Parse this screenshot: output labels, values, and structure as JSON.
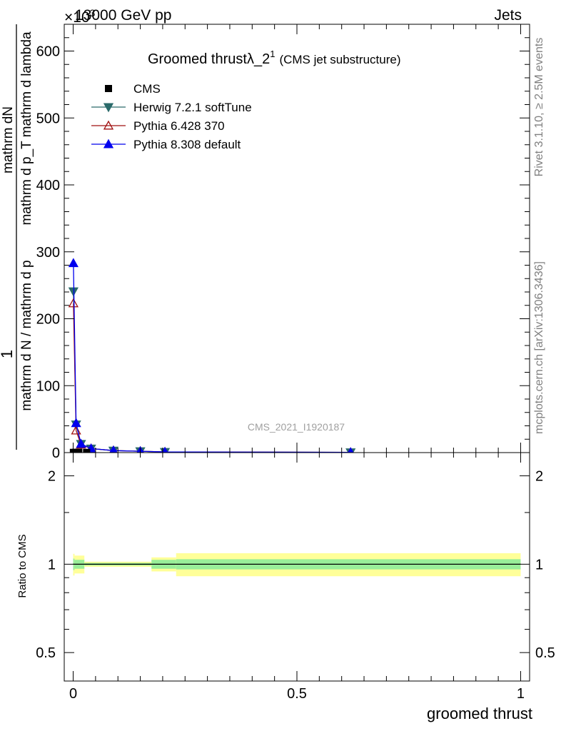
{
  "header": {
    "left": "13000 GeV pp",
    "right": "Jets",
    "exponent_prefix": "×10",
    "exponent_power": "3"
  },
  "side_labels": {
    "rivet": "Rivet 3.1.10, ≥ 2.5M events",
    "mcplots": "mcplots.cern.ch [arXiv:1306.3436]"
  },
  "chart_data": [
    {
      "type": "line",
      "title": "Groomed thrustλ_2",
      "title_sup": "1",
      "subtitle": "(CMS jet substructure)",
      "watermark": "CMS_2021_I1920187",
      "ylabel_numerator": "1",
      "ylabel_line1": "mathrm d N / mathrm d p",
      "ylabel_line2": "mathrm dN",
      "ylabel_line3": "mathrm d p_T mathrm d lambda",
      "ylabel_full": "mathrm d N / mathrm d p_T mathrm d p_T mathrm d lambda",
      "xlabel": "groomed thrust",
      "ylim": [
        0,
        640
      ],
      "xlim": [
        -0.02,
        1.02
      ],
      "y_scale_factor": 1000,
      "yticks": [
        0,
        100,
        200,
        300,
        400,
        500,
        600
      ],
      "ytick_labels": [
        "0",
        "100",
        "200",
        "300",
        "400",
        "500",
        "600"
      ],
      "legend_position": "top-left",
      "series": [
        {
          "name": "CMS",
          "color": "#000000",
          "marker": "square",
          "x": [
            0.0005,
            0.005,
            0.0125,
            0.03
          ],
          "y": [
            0.3,
            0.4,
            0.5,
            0.3
          ]
        },
        {
          "name": "Herwig 7.2.1 softTune",
          "color": "#2a6a6a",
          "marker": "triangle-down",
          "x": [
            0.0005,
            0.0065,
            0.0175,
            0.04,
            0.09,
            0.15,
            0.205,
            0.62
          ],
          "y": [
            241,
            42,
            13,
            6,
            3,
            2,
            1,
            0.4
          ]
        },
        {
          "name": "Pythia 6.428 370",
          "color": "#a01010",
          "marker": "triangle-up-open",
          "x": [
            0.0005,
            0.0065,
            0.0175,
            0.04,
            0.09,
            0.15,
            0.205,
            0.62
          ],
          "y": [
            223,
            33,
            12,
            6,
            3,
            2,
            1,
            0.4
          ]
        },
        {
          "name": "Pythia 8.308 default",
          "color": "#0000ee",
          "marker": "triangle-up",
          "x": [
            0.0005,
            0.0065,
            0.0175,
            0.04,
            0.09,
            0.15,
            0.205,
            0.62
          ],
          "y": [
            283,
            44,
            13,
            6,
            3,
            2,
            1,
            0.4
          ]
        }
      ]
    },
    {
      "type": "area",
      "ylabel": "Ratio to CMS",
      "xlabel": "groomed thrust",
      "ylim": [
        0.4,
        2.4
      ],
      "log_scale": true,
      "yticks": [
        0.5,
        1,
        2
      ],
      "ytick_labels": [
        "0.5",
        "1",
        "2"
      ],
      "xticks": [
        0,
        0.5,
        1
      ],
      "xtick_labels": [
        "0",
        "0.5",
        "1"
      ],
      "reference": 1,
      "bands": [
        {
          "x0": 0.0,
          "x1": 0.003,
          "inner": 0.045,
          "outer": 0.085
        },
        {
          "x0": 0.003,
          "x1": 0.025,
          "inner": 0.035,
          "outer": 0.07
        },
        {
          "x0": 0.025,
          "x1": 0.175,
          "inner": 0.01,
          "outer": 0.02
        },
        {
          "x0": 0.175,
          "x1": 0.23,
          "inner": 0.035,
          "outer": 0.055
        },
        {
          "x0": 0.23,
          "x1": 1.0,
          "inner": 0.04,
          "outer": 0.09
        }
      ],
      "inner_color": "#99ee99",
      "outer_color": "#ffff99"
    }
  ]
}
